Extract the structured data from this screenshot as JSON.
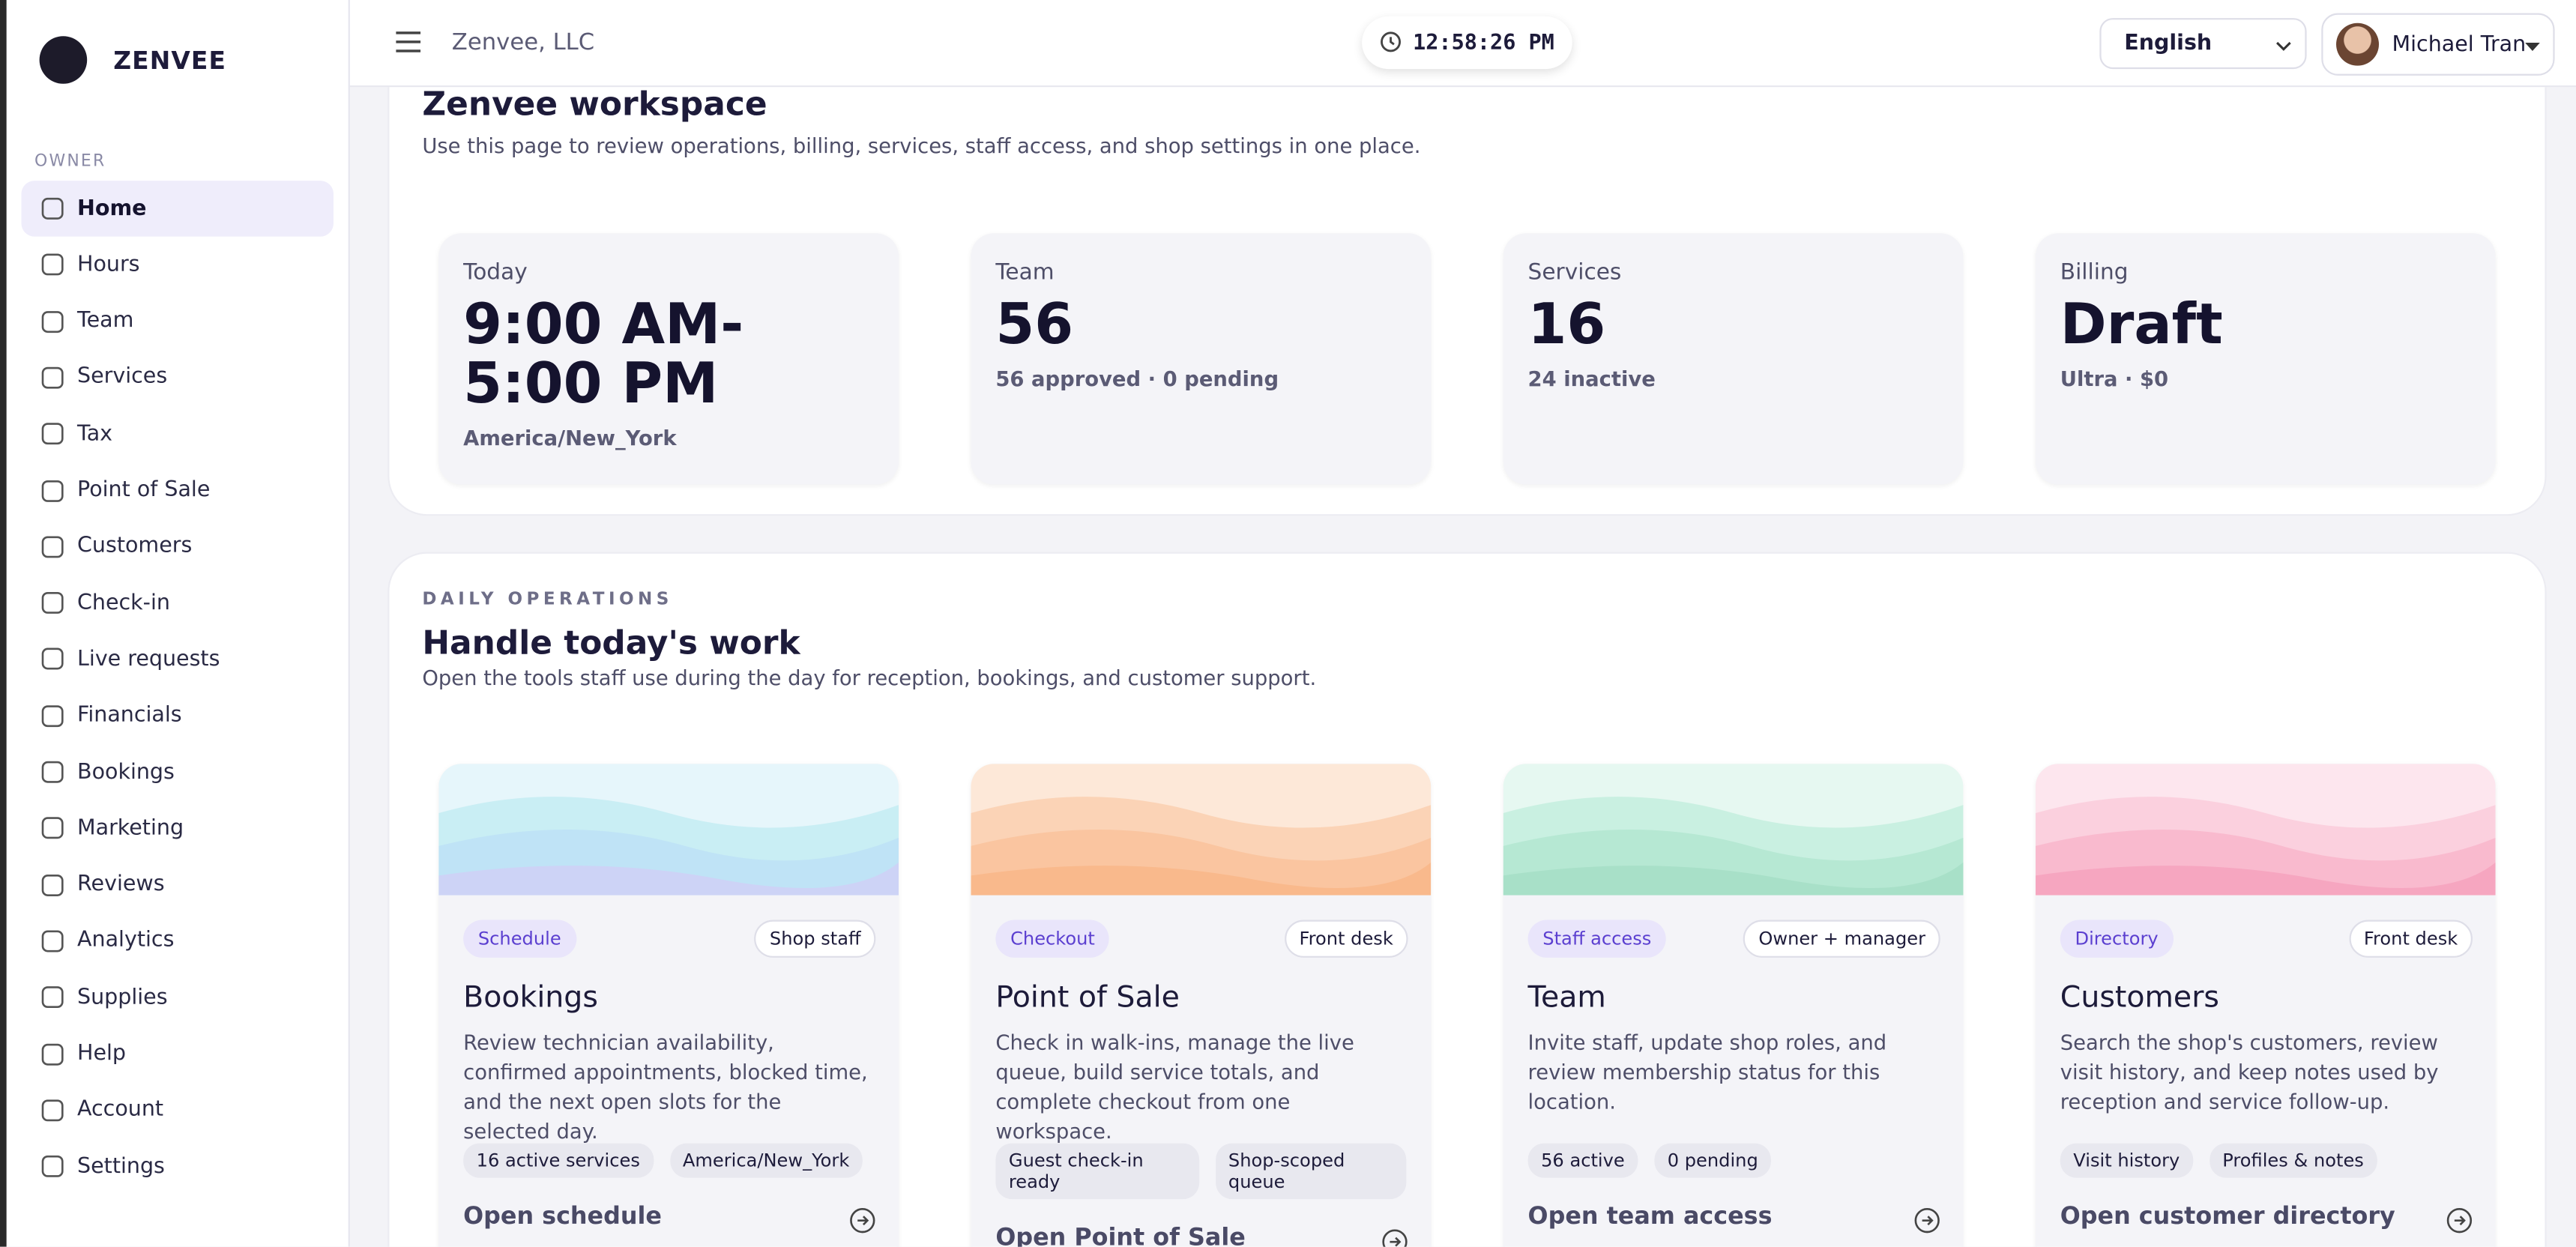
{
  "brand": "ZENVEE",
  "sidebar": {
    "section": "OWNER",
    "items": [
      "Home",
      "Hours",
      "Team",
      "Services",
      "Tax",
      "Point of Sale",
      "Customers",
      "Check-in",
      "Live requests",
      "Financials",
      "Bookings",
      "Marketing",
      "Reviews",
      "Analytics",
      "Supplies",
      "Help",
      "Account",
      "Settings"
    ]
  },
  "topbar": {
    "company": "Zenvee, LLC",
    "clock": "12:58:26 PM",
    "language": "English",
    "user": "Michael Tran"
  },
  "workspace": {
    "title": "Zenvee workspace",
    "subtitle": "Use this page to review operations, billing, services, staff access, and shop settings in one place.",
    "stats": [
      {
        "label": "Today",
        "value": "9:00 AM-5:00 PM",
        "detail": "America/New_York"
      },
      {
        "label": "Team",
        "value": "56",
        "detail": "56 approved · 0 pending"
      },
      {
        "label": "Services",
        "value": "16",
        "detail": "24 inactive"
      },
      {
        "label": "Billing",
        "value": "Draft",
        "detail": "Ultra · $0"
      }
    ]
  },
  "operations": {
    "eyebrow": "DAILY OPERATIONS",
    "title": "Handle today's work",
    "subtitle": "Open the tools staff use during the day for reception, bookings, and customer support.",
    "cards": [
      {
        "tag": "Schedule",
        "audience": "Shop staff",
        "title": "Bookings",
        "description": "Review technician availability, confirmed appointments, blocked time, and the next open slots for the selected day.",
        "chips": [
          "16 active services",
          "America/New_York"
        ],
        "action": "Open schedule"
      },
      {
        "tag": "Checkout",
        "audience": "Front desk",
        "title": "Point of Sale",
        "description": "Check in walk-ins, manage the live queue, build service totals, and complete checkout from one workspace.",
        "chips": [
          "Guest check-in ready",
          "Shop-scoped queue"
        ],
        "action": "Open Point of Sale"
      },
      {
        "tag": "Staff access",
        "audience": "Owner + manager",
        "title": "Team",
        "description": "Invite staff, update shop roles, and review membership status for this location.",
        "chips": [
          "56 active",
          "0 pending"
        ],
        "action": "Open team access"
      },
      {
        "tag": "Directory",
        "audience": "Front desk",
        "title": "Customers",
        "description": "Search the shop's customers, review visit history, and keep notes used by reception and service follow-up.",
        "chips": [
          "Visit history",
          "Profiles & notes"
        ],
        "action": "Open customer directory"
      }
    ]
  }
}
